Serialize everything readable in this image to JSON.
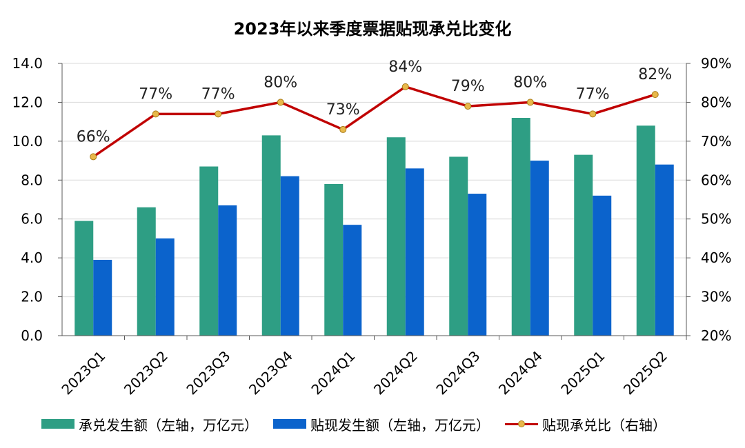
{
  "title": "2023年以来季度票据贴现承兑比变化",
  "colors": {
    "acceptance_bar": "#2e9e84",
    "discount_bar": "#0b63cc",
    "ratio_line": "#c00000",
    "ratio_marker": "#e8b84a",
    "axis": "#595959",
    "grid": "#d9d9d9"
  },
  "legend": [
    {
      "label": "承兑发生额（左轴，万亿元）",
      "kind": "bar",
      "color": "#2e9e84"
    },
    {
      "label": "贴现发生额（左轴，万亿元）",
      "kind": "bar",
      "color": "#0b63cc"
    },
    {
      "label": "贴现承兑比（右轴）",
      "kind": "line",
      "color": "#c00000"
    }
  ],
  "chart_data": {
    "type": "bar",
    "title": "2023年以来季度票据贴现承兑比变化",
    "categories": [
      "2023Q1",
      "2023Q2",
      "2023Q3",
      "2023Q4",
      "2024Q1",
      "2024Q2",
      "2024Q3",
      "2024Q4",
      "2025Q1",
      "2025Q2"
    ],
    "series": [
      {
        "name": "承兑发生额（左轴，万亿元）",
        "axis": "left",
        "type": "bar",
        "values": [
          5.9,
          6.6,
          8.7,
          10.3,
          7.8,
          10.2,
          9.2,
          11.2,
          9.3,
          10.8
        ]
      },
      {
        "name": "贴现发生额（左轴，万亿元）",
        "axis": "left",
        "type": "bar",
        "values": [
          3.9,
          5.0,
          6.7,
          8.2,
          5.7,
          8.6,
          7.3,
          9.0,
          7.2,
          8.8
        ]
      },
      {
        "name": "贴现承兑比（右轴）",
        "axis": "right",
        "type": "line",
        "values": [
          66,
          77,
          77,
          80,
          73,
          84,
          79,
          80,
          77,
          82
        ],
        "labels": [
          "66%",
          "77%",
          "77%",
          "80%",
          "73%",
          "84%",
          "79%",
          "80%",
          "77%",
          "82%"
        ]
      }
    ],
    "y_left": {
      "min": 0,
      "max": 14,
      "step": 2,
      "tick_labels": [
        "0.0",
        "2.0",
        "4.0",
        "6.0",
        "8.0",
        "10.0",
        "12.0",
        "14.0"
      ]
    },
    "y_right": {
      "min": 20,
      "max": 90,
      "step": 10,
      "tick_labels": [
        "20%",
        "30%",
        "40%",
        "50%",
        "60%",
        "70%",
        "80%",
        "90%"
      ]
    },
    "grid": true,
    "legend_position": "bottom"
  }
}
